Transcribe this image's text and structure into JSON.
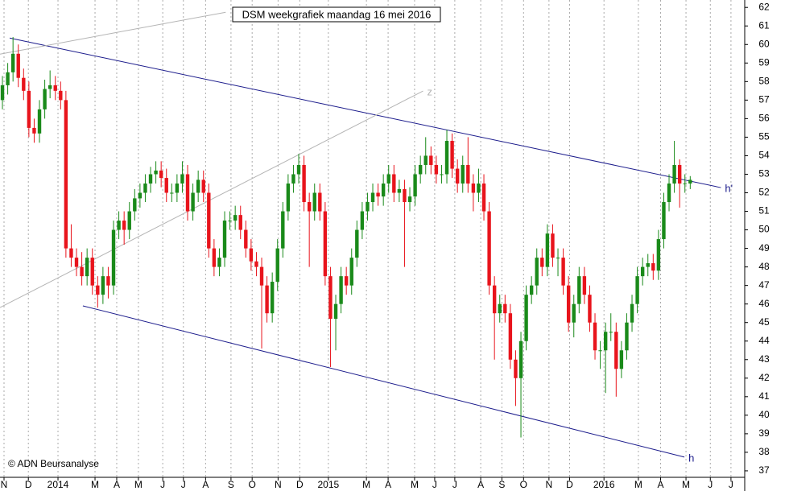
{
  "chart_data": {
    "type": "candlestick",
    "title": "DSM weekgrafiek maandag 16 mei 2016",
    "credit": "© ADN Beursanalyse",
    "up_color": "#1a8a1a",
    "down_color": "#e8141c",
    "grid": true,
    "xlim": [
      -0.46,
      140.3
    ],
    "ylim": [
      36.65,
      62.4
    ],
    "yticks": [
      37,
      38,
      39,
      40,
      41,
      42,
      43,
      44,
      45,
      46,
      47,
      48,
      49,
      50,
      51,
      52,
      53,
      54,
      55,
      56,
      57,
      58,
      59,
      60,
      61,
      62
    ],
    "xticks": [
      {
        "value": 0.3,
        "label": "N"
      },
      {
        "value": 4.9,
        "label": "D"
      },
      {
        "value": 10.5,
        "label": "2014"
      },
      {
        "value": 17.5,
        "label": "M"
      },
      {
        "value": 21.6,
        "label": "A"
      },
      {
        "value": 25.7,
        "label": "M"
      },
      {
        "value": 30.3,
        "label": "J"
      },
      {
        "value": 34.2,
        "label": "J"
      },
      {
        "value": 38.4,
        "label": "A"
      },
      {
        "value": 43.2,
        "label": "S"
      },
      {
        "value": 47.2,
        "label": "O"
      },
      {
        "value": 52.1,
        "label": "N"
      },
      {
        "value": 56.2,
        "label": "D"
      },
      {
        "value": 61.6,
        "label": "2015"
      },
      {
        "value": 68.8,
        "label": "M"
      },
      {
        "value": 72.9,
        "label": "A"
      },
      {
        "value": 77.9,
        "label": "M"
      },
      {
        "value": 81.7,
        "label": "J"
      },
      {
        "value": 85.5,
        "label": "J"
      },
      {
        "value": 90.4,
        "label": "A"
      },
      {
        "value": 94.4,
        "label": "S"
      },
      {
        "value": 98.5,
        "label": "O"
      },
      {
        "value": 103.3,
        "label": "N"
      },
      {
        "value": 107.2,
        "label": "D"
      },
      {
        "value": 113.7,
        "label": "2016"
      },
      {
        "value": 120.2,
        "label": "M"
      },
      {
        "value": 124.4,
        "label": "A"
      },
      {
        "value": 129.2,
        "label": "M"
      },
      {
        "value": 133.8,
        "label": "J"
      },
      {
        "value": 137.7,
        "label": "J"
      }
    ],
    "open": [
      57.0,
      57.8,
      58.5,
      59.5,
      58.2,
      57.5,
      55.5,
      55.2,
      56.5,
      57.6,
      57.8,
      57.5,
      57.0,
      49.0,
      48.5,
      48.0,
      47.5,
      48.5,
      47.0,
      46.5,
      47.5,
      47.0,
      50.0,
      50.5,
      50.0,
      51.0,
      51.7,
      52.0,
      52.5,
      53.0,
      53.2,
      52.8,
      52.0,
      52.0,
      52.5,
      53.0,
      51.0,
      52.0,
      52.7,
      52.0,
      49.0,
      48.0,
      48.5,
      50.5,
      50.5,
      50.8,
      50.0,
      49.0,
      48.3,
      48.0,
      47.0,
      45.5,
      47.2,
      49.0,
      51.0,
      52.5,
      53.0,
      53.5,
      51.5,
      51.0,
      52.0,
      51.0,
      47.5,
      45.2,
      46.0,
      47.5,
      47.0,
      48.5,
      50.0,
      51.0,
      51.5,
      52.0,
      51.8,
      52.5,
      53.0,
      52.0,
      52.2,
      51.5,
      51.8,
      53.0,
      53.5,
      54.0,
      53.5,
      53.0,
      53.0,
      54.8,
      53.3,
      52.5,
      53.5,
      52.5,
      52.0,
      52.5,
      51.0,
      47.0,
      45.5,
      46.0,
      45.5,
      43.0,
      42.0,
      44.0,
      46.5,
      47.0,
      48.5,
      48.0,
      49.8,
      48.5,
      48.5,
      47.0,
      45.0,
      46.0,
      47.5,
      46.5,
      45.0,
      43.5,
      43.5,
      44.5,
      44.5,
      42.5,
      43.5,
      45.0,
      46.0,
      47.5,
      48.0,
      48.2,
      47.8,
      49.5,
      51.5,
      52.5,
      53.5,
      52.5,
      52.5
    ],
    "high": [
      58.3,
      59.0,
      60.4,
      60.0,
      58.7,
      58.0,
      56.0,
      57.0,
      58.1,
      58.6,
      58.3,
      58.0,
      57.5,
      50.3,
      49.0,
      48.8,
      49.0,
      49.0,
      47.5,
      48.0,
      48.0,
      50.5,
      51.0,
      51.0,
      51.5,
      52.2,
      52.5,
      53.0,
      53.4,
      53.7,
      53.7,
      53.3,
      52.5,
      53.0,
      53.7,
      53.5,
      52.5,
      53.2,
      53.2,
      52.5,
      49.5,
      49.0,
      51.0,
      51.0,
      51.3,
      51.3,
      50.5,
      49.5,
      48.8,
      48.5,
      47.5,
      47.7,
      49.5,
      51.5,
      53.0,
      53.5,
      54.1,
      54.0,
      52.0,
      52.5,
      52.5,
      51.5,
      48.0,
      46.5,
      48.0,
      48.0,
      49.0,
      50.5,
      51.5,
      52.0,
      52.5,
      52.5,
      53.0,
      53.5,
      53.5,
      52.7,
      52.7,
      52.3,
      53.5,
      54.0,
      55.0,
      54.5,
      54.0,
      53.5,
      55.4,
      55.2,
      53.8,
      54.0,
      55.0,
      53.0,
      53.3,
      53.0,
      51.5,
      47.5,
      46.5,
      46.5,
      46.0,
      43.5,
      44.5,
      47.0,
      47.5,
      49.0,
      49.0,
      50.3,
      50.3,
      49.0,
      49.0,
      47.5,
      46.5,
      48.0,
      48.0,
      47.0,
      45.5,
      44.0,
      45.0,
      45.5,
      45.0,
      44.0,
      45.5,
      46.5,
      48.0,
      48.5,
      48.7,
      48.7,
      50.0,
      52.0,
      53.0,
      54.8,
      53.8,
      53.0,
      52.9
    ],
    "low": [
      56.5,
      57.3,
      58.0,
      57.7,
      57.0,
      55.0,
      54.7,
      54.7,
      56.0,
      57.1,
      57.0,
      56.5,
      48.5,
      48.0,
      47.5,
      47.0,
      47.0,
      46.5,
      45.8,
      46.0,
      46.3,
      46.5,
      49.5,
      49.2,
      49.5,
      50.5,
      51.2,
      51.5,
      52.0,
      52.5,
      52.3,
      51.5,
      51.5,
      51.5,
      52.0,
      50.5,
      50.5,
      51.5,
      51.5,
      48.5,
      47.5,
      47.5,
      48.0,
      50.0,
      50.0,
      49.5,
      48.5,
      47.8,
      47.5,
      43.6,
      45.0,
      45.0,
      46.7,
      48.5,
      50.5,
      52.0,
      52.5,
      51.0,
      48.0,
      50.5,
      50.5,
      47.0,
      42.6,
      43.5,
      45.5,
      46.5,
      46.5,
      48.0,
      49.5,
      50.5,
      51.0,
      51.3,
      51.3,
      52.0,
      51.5,
      51.5,
      48.0,
      51.0,
      51.3,
      52.5,
      53.0,
      53.0,
      52.5,
      52.5,
      52.5,
      52.8,
      52.0,
      52.0,
      52.0,
      51.0,
      51.5,
      50.5,
      46.5,
      43.0,
      45.0,
      45.0,
      42.5,
      40.5,
      38.8,
      43.5,
      46.0,
      46.5,
      47.5,
      47.5,
      48.0,
      47.5,
      46.5,
      44.5,
      44.2,
      45.5,
      46.0,
      44.5,
      43.0,
      42.5,
      41.2,
      44.0,
      41.0,
      42.0,
      43.0,
      44.5,
      45.5,
      47.0,
      47.5,
      47.3,
      47.3,
      49.0,
      51.0,
      52.0,
      51.2,
      52.0,
      52.2
    ],
    "close": [
      57.8,
      58.5,
      59.5,
      58.2,
      57.5,
      55.5,
      55.2,
      56.5,
      57.6,
      57.8,
      57.5,
      57.0,
      49.0,
      48.5,
      48.0,
      47.5,
      48.5,
      47.0,
      46.5,
      47.5,
      47.0,
      50.0,
      50.5,
      50.0,
      51.0,
      51.7,
      52.0,
      52.5,
      53.0,
      53.2,
      52.8,
      52.0,
      52.0,
      52.5,
      53.0,
      51.0,
      52.0,
      52.7,
      52.0,
      49.0,
      48.0,
      48.5,
      50.5,
      50.5,
      50.8,
      50.0,
      49.0,
      48.3,
      48.0,
      47.0,
      45.5,
      47.2,
      49.0,
      51.0,
      52.5,
      53.0,
      53.5,
      51.5,
      51.0,
      52.0,
      51.0,
      47.5,
      45.2,
      46.0,
      47.5,
      47.0,
      48.5,
      50.0,
      51.0,
      51.5,
      52.0,
      51.8,
      52.5,
      53.0,
      52.0,
      52.2,
      51.5,
      51.8,
      53.0,
      53.5,
      54.0,
      53.5,
      53.0,
      53.0,
      54.8,
      53.3,
      52.5,
      53.5,
      52.5,
      52.0,
      52.5,
      51.0,
      47.0,
      45.5,
      46.0,
      45.5,
      43.0,
      42.0,
      44.0,
      46.5,
      47.0,
      48.5,
      48.0,
      49.8,
      48.5,
      48.5,
      47.0,
      45.0,
      46.0,
      47.5,
      46.5,
      45.0,
      43.5,
      43.5,
      44.5,
      44.5,
      42.5,
      43.5,
      45.0,
      46.0,
      47.5,
      48.0,
      48.2,
      47.8,
      49.5,
      51.5,
      52.5,
      53.5,
      52.5,
      52.5,
      52.7
    ],
    "trendlines": [
      {
        "label": "h'",
        "color": "#1c1c8c",
        "start": [
          1.37,
          60.35
        ],
        "end": [
          135.8,
          52.28
        ]
      },
      {
        "label": "h",
        "color": "#1c1c8c",
        "start": [
          15.2,
          45.9
        ],
        "end": [
          128.9,
          37.74
        ]
      },
      {
        "color": "#b4b4b4",
        "start": [
          -0.46,
          59.48
        ],
        "end": [
          42.2,
          61.74
        ]
      },
      {
        "label": "z",
        "color": "#b4b4b4",
        "start": [
          -0.46,
          45.81
        ],
        "end": [
          79.5,
          57.49
        ]
      }
    ]
  }
}
